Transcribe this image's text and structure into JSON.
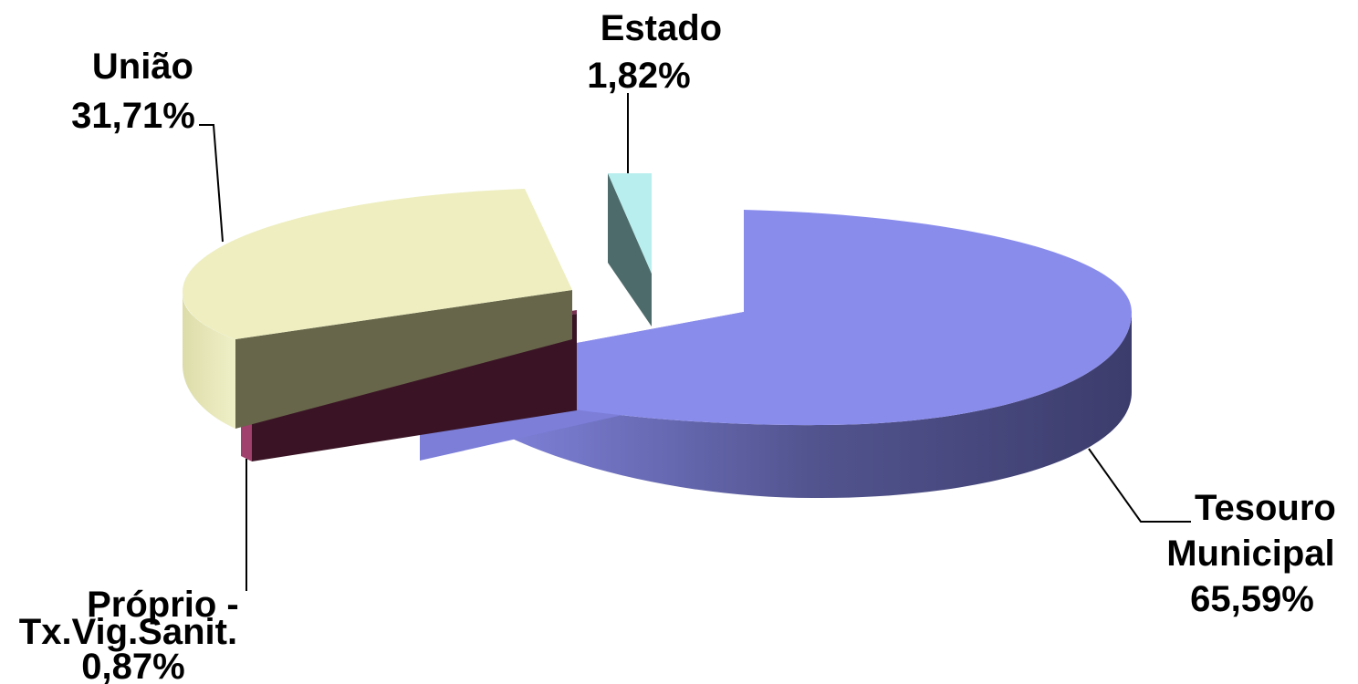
{
  "chart_data": {
    "type": "pie",
    "title": "",
    "legend": "none",
    "slices": [
      {
        "label_lines": [
          "Tesouro",
          "Municipal"
        ],
        "value": 65.59,
        "value_label": "65,59%",
        "top_color": "#8a8cec",
        "side_color": "#3c3c6c"
      },
      {
        "label_lines": [
          "Próprio -",
          "Tx.Vig.Sanit."
        ],
        "value": 0.87,
        "value_label": "0,87%",
        "top_color": "#a0406c",
        "side_color": "#3a1425"
      },
      {
        "label_lines": [
          "União"
        ],
        "value": 31.71,
        "value_label": "31,71%",
        "top_color": "#eeeec0",
        "side_color": "#67664a"
      },
      {
        "label_lines": [
          "Estado"
        ],
        "value": 1.82,
        "value_label": "1,82%",
        "top_color": "#b8eeee",
        "side_color": "#4e6b6b"
      }
    ]
  }
}
